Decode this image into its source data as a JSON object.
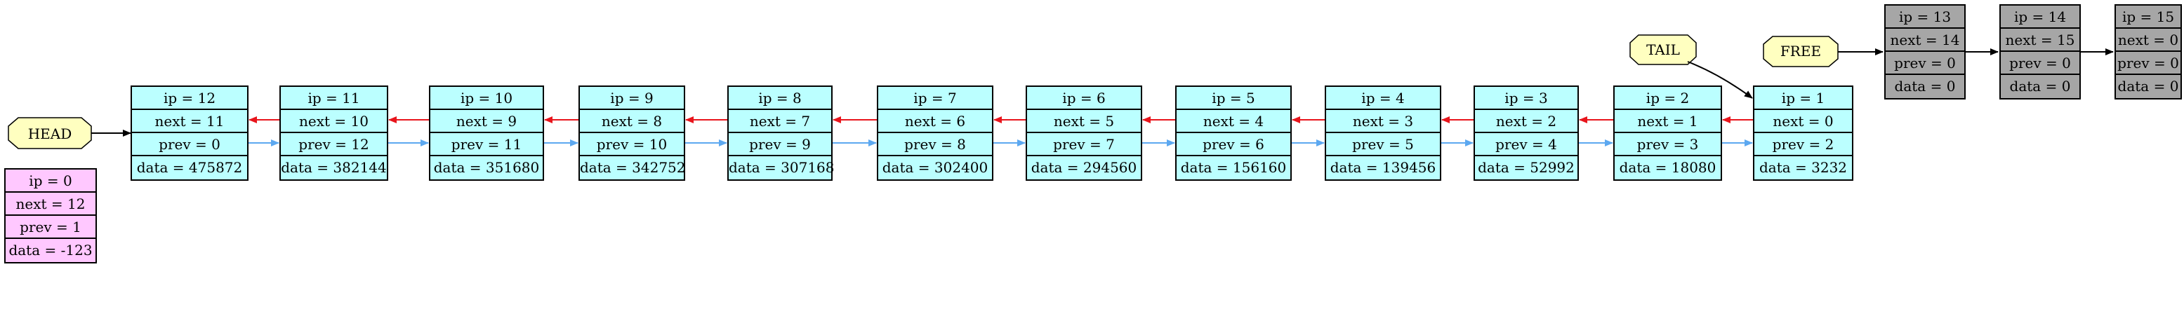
{
  "colors": {
    "list_node": "#bbffff",
    "free_node": "#a6a6a6",
    "dummy_node": "#ffc8ff",
    "pointer_node": "#ffffc0",
    "next_edge": "#e8151c",
    "prev_edge": "#5ca8f0",
    "pointer_edge": "#000000"
  },
  "pointers": {
    "head": "HEAD",
    "tail": "TAIL",
    "free": "FREE"
  },
  "dummy": {
    "ip": "ip = 0",
    "next": "next = 12",
    "prev": "prev = 1",
    "data": "data = -123"
  },
  "list_nodes": [
    {
      "ip": "ip = 12",
      "next": "next = 11",
      "prev": "prev = 0",
      "data": "data = 475872"
    },
    {
      "ip": "ip = 11",
      "next": "next = 10",
      "prev": "prev = 12",
      "data": "data = 382144"
    },
    {
      "ip": "ip = 10",
      "next": "next = 9",
      "prev": "prev = 11",
      "data": "data = 351680"
    },
    {
      "ip": "ip = 9",
      "next": "next = 8",
      "prev": "prev = 10",
      "data": "data = 342752"
    },
    {
      "ip": "ip = 8",
      "next": "next = 7",
      "prev": "prev = 9",
      "data": "data = 307168"
    },
    {
      "ip": "ip = 7",
      "next": "next = 6",
      "prev": "prev = 8",
      "data": "data = 302400"
    },
    {
      "ip": "ip = 6",
      "next": "next = 5",
      "prev": "prev = 7",
      "data": "data = 294560"
    },
    {
      "ip": "ip = 5",
      "next": "next = 4",
      "prev": "prev = 6",
      "data": "data = 156160"
    },
    {
      "ip": "ip = 4",
      "next": "next = 3",
      "prev": "prev = 5",
      "data": "data = 139456"
    },
    {
      "ip": "ip = 3",
      "next": "next = 2",
      "prev": "prev = 4",
      "data": "data = 52992"
    },
    {
      "ip": "ip = 2",
      "next": "next = 1",
      "prev": "prev = 3",
      "data": "data = 18080"
    },
    {
      "ip": "ip = 1",
      "next": "next = 0",
      "prev": "prev = 2",
      "data": "data = 3232"
    }
  ],
  "free_nodes": [
    {
      "ip": "ip = 13",
      "next": "next = 14",
      "prev": "prev = 0",
      "data": "data = 0"
    },
    {
      "ip": "ip = 14",
      "next": "next = 15",
      "prev": "prev = 0",
      "data": "data = 0"
    },
    {
      "ip": "ip = 15",
      "next": "next = 0",
      "prev": "prev = 0",
      "data": "data = 0"
    }
  ]
}
